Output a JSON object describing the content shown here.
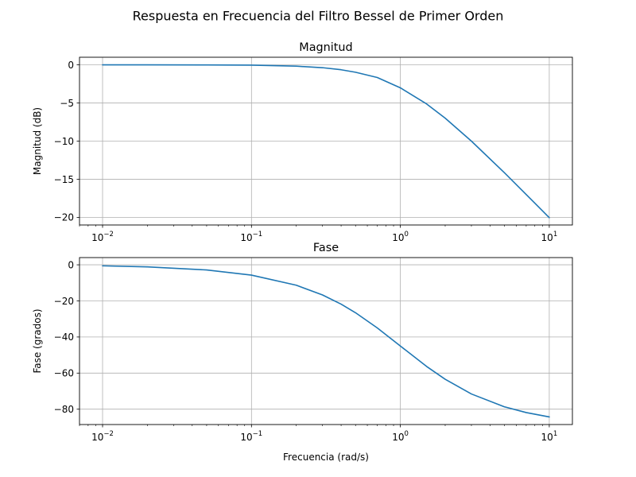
{
  "figure": {
    "suptitle": "Respuesta en Frecuencia del Filtro Bessel de Primer Orden"
  },
  "colors": {
    "line": "#1f77b4",
    "grid": "#b0b0b0",
    "axes": "#000000",
    "background": "#ffffff"
  },
  "chart_data": [
    {
      "type": "line",
      "title": "Magnitud",
      "xlabel": "",
      "ylabel": "Magnitud (dB)",
      "xscale": "log",
      "xlim": [
        0.007,
        14.3
      ],
      "ylim": [
        -21.0,
        1.0
      ],
      "grid": true,
      "xticks": [
        0.01,
        0.1,
        1,
        10
      ],
      "xtick_labels": [
        [
          "10",
          "−2"
        ],
        [
          "10",
          "−1"
        ],
        [
          "10",
          "0"
        ],
        [
          "10",
          "1"
        ]
      ],
      "yticks": [
        0,
        -5,
        -10,
        -15,
        -20
      ],
      "ytick_labels": [
        "0",
        "−5",
        "−10",
        "−15",
        "−20"
      ],
      "series": [
        {
          "x": [
            0.01,
            0.02,
            0.05,
            0.1,
            0.2,
            0.3,
            0.4,
            0.5,
            0.7,
            1,
            1.5,
            2,
            3,
            5,
            7,
            10
          ],
          "values": [
            0.0,
            0.0,
            -0.01,
            -0.04,
            -0.17,
            -0.37,
            -0.64,
            -0.97,
            -1.66,
            -3.01,
            -5.12,
            -6.99,
            -10.0,
            -14.15,
            -17.0,
            -20.04
          ]
        }
      ]
    },
    {
      "type": "line",
      "title": "Fase",
      "xlabel": "Frecuencia (rad/s)",
      "ylabel": "Fase (grados)",
      "xscale": "log",
      "xlim": [
        0.007,
        14.3
      ],
      "ylim": [
        -88.5,
        4.0
      ],
      "grid": true,
      "xticks": [
        0.01,
        0.1,
        1,
        10
      ],
      "xtick_labels": [
        [
          "10",
          "−2"
        ],
        [
          "10",
          "−1"
        ],
        [
          "10",
          "0"
        ],
        [
          "10",
          "1"
        ]
      ],
      "yticks": [
        0,
        -20,
        -40,
        -60,
        -80
      ],
      "ytick_labels": [
        "0",
        "−20",
        "−40",
        "−60",
        "−80"
      ],
      "series": [
        {
          "x": [
            0.01,
            0.02,
            0.05,
            0.1,
            0.2,
            0.3,
            0.4,
            0.5,
            0.7,
            1,
            1.5,
            2,
            3,
            5,
            7,
            10
          ],
          "values": [
            -0.57,
            -1.15,
            -2.86,
            -5.71,
            -11.31,
            -16.7,
            -21.8,
            -26.57,
            -34.99,
            -45.0,
            -56.31,
            -63.43,
            -71.57,
            -78.69,
            -81.87,
            -84.29
          ]
        }
      ]
    }
  ]
}
